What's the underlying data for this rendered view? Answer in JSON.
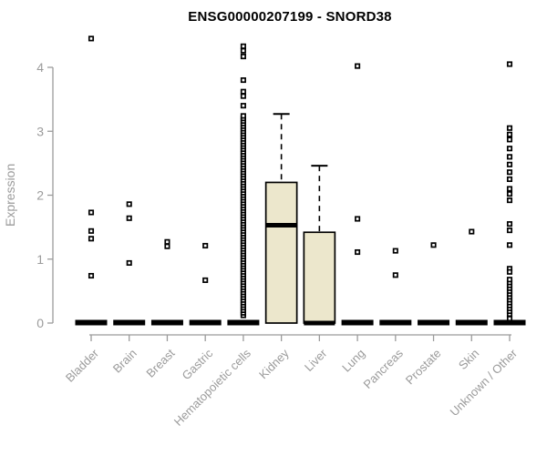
{
  "title": "ENSG00000207199 - SNORD38",
  "colors": {
    "axis": "#9b9b9b",
    "tick_label": "#9b9b9b",
    "title": "#000000",
    "box_fill": "#ece7cc",
    "box_border": "#000000",
    "outlier": "#000000"
  },
  "chart_data": {
    "type": "boxplot",
    "title": "ENSG00000207199 - SNORD38",
    "xlabel": "",
    "ylabel": "Expression",
    "ylim": [
      0,
      4
    ],
    "yticks": [
      0,
      1,
      2,
      3,
      4
    ],
    "grid": false,
    "legend": false,
    "categories": [
      "Bladder",
      "Brain",
      "Breast",
      "Gastric",
      "Hematopoietic cells",
      "Kidney",
      "Liver",
      "Lung",
      "Pancreas",
      "Prostate",
      "Skin",
      "Unknown / Other"
    ],
    "series": [
      {
        "name": "Bladder",
        "q1": 0,
        "median": 0,
        "q3": 0,
        "whisker_high": 0,
        "outliers": [
          4.45,
          1.73,
          1.44,
          1.32,
          0.74
        ]
      },
      {
        "name": "Brain",
        "q1": 0,
        "median": 0,
        "q3": 0,
        "whisker_high": 0,
        "outliers": [
          1.86,
          1.64,
          0.94
        ]
      },
      {
        "name": "Breast",
        "q1": 0,
        "median": 0,
        "q3": 0,
        "whisker_high": 0,
        "outliers": [
          1.27,
          1.2
        ]
      },
      {
        "name": "Gastric",
        "q1": 0,
        "median": 0,
        "q3": 0,
        "whisker_high": 0,
        "outliers": [
          1.21,
          0.67
        ]
      },
      {
        "name": "Hematopoietic cells",
        "q1": 0,
        "median": 0,
        "q3": 0,
        "whisker_high": 0,
        "outliers": [
          4.33,
          4.26,
          4.17,
          3.8,
          3.62,
          3.55,
          3.4
        ],
        "outlier_strip": {
          "min": 0.12,
          "max": 3.26,
          "step": 0.04
        }
      },
      {
        "name": "Kidney",
        "q1": 0,
        "median": 1.53,
        "q3": 2.2,
        "whisker_high": 3.27,
        "outliers": []
      },
      {
        "name": "Liver",
        "q1": 0,
        "median": 0,
        "q3": 1.42,
        "whisker_high": 2.46,
        "outliers": []
      },
      {
        "name": "Lung",
        "q1": 0,
        "median": 0,
        "q3": 0,
        "whisker_high": 0,
        "outliers": [
          4.02,
          1.63,
          1.11
        ]
      },
      {
        "name": "Pancreas",
        "q1": 0,
        "median": 0,
        "q3": 0,
        "whisker_high": 0,
        "outliers": [
          1.13,
          0.75
        ]
      },
      {
        "name": "Prostate",
        "q1": 0,
        "median": 0,
        "q3": 0,
        "whisker_high": 0,
        "outliers": [
          1.22
        ]
      },
      {
        "name": "Skin",
        "q1": 0,
        "median": 0,
        "q3": 0,
        "whisker_high": 0,
        "outliers": [
          1.43
        ]
      },
      {
        "name": "Unknown / Other",
        "q1": 0,
        "median": 0,
        "q3": 0,
        "whisker_high": 0,
        "outliers": [
          4.05,
          3.05,
          2.95,
          2.87,
          2.73,
          2.6,
          2.48,
          2.36,
          2.25,
          2.1,
          2.02,
          1.92,
          1.55,
          1.45,
          1.22,
          0.85,
          0.8,
          0.07
        ],
        "outlier_strip": {
          "min": 0.14,
          "max": 0.72,
          "step": 0.045
        }
      }
    ]
  }
}
